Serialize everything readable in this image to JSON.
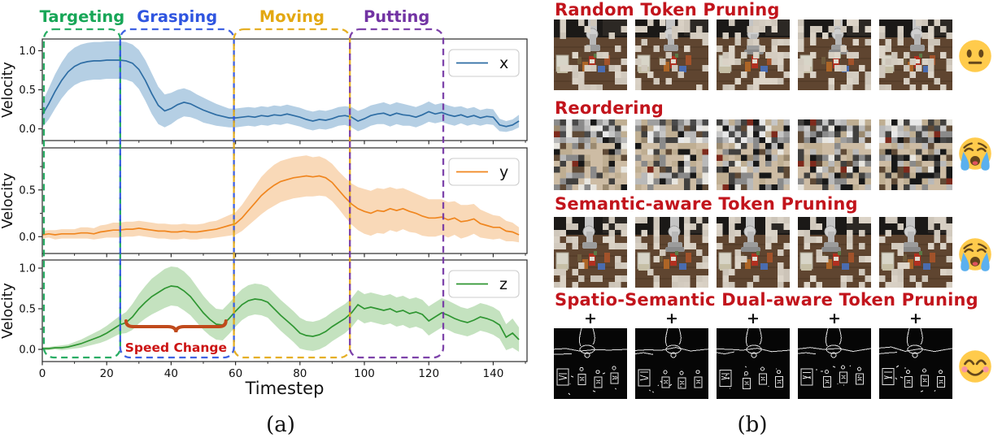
{
  "figure": {
    "caption_a": "(a)",
    "caption_b": "(b)"
  },
  "chart_data": {
    "type": "line",
    "xlabel": "Timestep",
    "ylabel": "Velocity",
    "xlim": [
      0,
      150.5
    ],
    "xticks": [
      0,
      20,
      40,
      60,
      80,
      100,
      120,
      140
    ],
    "x_start": 0,
    "x_step": 2,
    "grid": false,
    "legend_position": "upper right",
    "subplots": [
      {
        "name": "x",
        "legend": "x",
        "color": "#2e6da4",
        "fill": "#b5cfe4",
        "ylim": [
          -0.15,
          1.15
        ],
        "yticks": [
          0.0,
          0.5,
          1.0
        ],
        "mean": [
          0.18,
          0.32,
          0.48,
          0.62,
          0.73,
          0.8,
          0.84,
          0.86,
          0.87,
          0.87,
          0.88,
          0.88,
          0.88,
          0.87,
          0.84,
          0.76,
          0.62,
          0.45,
          0.3,
          0.23,
          0.26,
          0.31,
          0.34,
          0.32,
          0.28,
          0.24,
          0.21,
          0.18,
          0.16,
          0.14,
          0.14,
          0.15,
          0.16,
          0.15,
          0.17,
          0.16,
          0.18,
          0.17,
          0.19,
          0.17,
          0.15,
          0.12,
          0.1,
          0.12,
          0.11,
          0.13,
          0.16,
          0.17,
          0.15,
          0.1,
          0.13,
          0.17,
          0.19,
          0.2,
          0.17,
          0.2,
          0.18,
          0.17,
          0.15,
          0.18,
          0.22,
          0.19,
          0.21,
          0.18,
          0.16,
          0.18,
          0.15,
          0.17,
          0.14,
          0.16,
          0.15,
          0.05,
          0.03,
          0.05,
          0.1
        ],
        "band": [
          0.16,
          0.2,
          0.22,
          0.23,
          0.24,
          0.24,
          0.24,
          0.24,
          0.24,
          0.24,
          0.24,
          0.24,
          0.24,
          0.24,
          0.24,
          0.25,
          0.26,
          0.26,
          0.24,
          0.21,
          0.2,
          0.19,
          0.18,
          0.17,
          0.16,
          0.16,
          0.15,
          0.14,
          0.13,
          0.12,
          0.12,
          0.12,
          0.12,
          0.12,
          0.12,
          0.12,
          0.12,
          0.12,
          0.12,
          0.12,
          0.12,
          0.12,
          0.12,
          0.12,
          0.12,
          0.12,
          0.12,
          0.12,
          0.13,
          0.13,
          0.13,
          0.13,
          0.13,
          0.14,
          0.14,
          0.14,
          0.14,
          0.13,
          0.13,
          0.13,
          0.13,
          0.12,
          0.12,
          0.12,
          0.12,
          0.11,
          0.11,
          0.11,
          0.1,
          0.1,
          0.1,
          0.08,
          0.07,
          0.07,
          0.08
        ]
      },
      {
        "name": "y",
        "legend": "y",
        "color": "#f0861f",
        "fill": "#f9d9b8",
        "ylim": [
          -0.18,
          0.95
        ],
        "yticks": [
          0.0,
          0.5
        ],
        "mean": [
          0.02,
          0.03,
          0.02,
          0.03,
          0.03,
          0.03,
          0.04,
          0.04,
          0.03,
          0.05,
          0.06,
          0.07,
          0.07,
          0.08,
          0.08,
          0.09,
          0.08,
          0.07,
          0.06,
          0.06,
          0.05,
          0.05,
          0.06,
          0.05,
          0.05,
          0.06,
          0.07,
          0.08,
          0.1,
          0.12,
          0.14,
          0.2,
          0.28,
          0.36,
          0.44,
          0.5,
          0.55,
          0.59,
          0.61,
          0.63,
          0.64,
          0.65,
          0.64,
          0.65,
          0.63,
          0.58,
          0.5,
          0.42,
          0.35,
          0.3,
          0.27,
          0.25,
          0.28,
          0.27,
          0.3,
          0.28,
          0.3,
          0.27,
          0.25,
          0.22,
          0.2,
          0.2,
          0.21,
          0.18,
          0.2,
          0.16,
          0.17,
          0.19,
          0.14,
          0.12,
          0.1,
          0.1,
          0.06,
          0.05,
          0.02
        ],
        "band": [
          0.04,
          0.04,
          0.05,
          0.05,
          0.05,
          0.05,
          0.06,
          0.06,
          0.06,
          0.07,
          0.07,
          0.08,
          0.08,
          0.08,
          0.08,
          0.08,
          0.08,
          0.08,
          0.08,
          0.08,
          0.08,
          0.08,
          0.08,
          0.08,
          0.08,
          0.08,
          0.09,
          0.09,
          0.1,
          0.11,
          0.12,
          0.14,
          0.16,
          0.18,
          0.2,
          0.21,
          0.22,
          0.22,
          0.22,
          0.22,
          0.22,
          0.22,
          0.21,
          0.21,
          0.2,
          0.2,
          0.2,
          0.21,
          0.22,
          0.23,
          0.24,
          0.24,
          0.24,
          0.24,
          0.23,
          0.23,
          0.22,
          0.22,
          0.21,
          0.21,
          0.2,
          0.2,
          0.19,
          0.19,
          0.18,
          0.18,
          0.17,
          0.16,
          0.15,
          0.14,
          0.13,
          0.12,
          0.11,
          0.1,
          0.08
        ]
      },
      {
        "name": "z",
        "legend": "z",
        "color": "#2f9632",
        "fill": "#c4e2bf",
        "ylim": [
          -0.15,
          1.1
        ],
        "yticks": [
          0.0,
          0.5,
          1.0
        ],
        "mean": [
          0.01,
          0.01,
          0.02,
          0.02,
          0.03,
          0.05,
          0.07,
          0.1,
          0.13,
          0.16,
          0.2,
          0.25,
          0.3,
          0.33,
          0.4,
          0.5,
          0.58,
          0.65,
          0.7,
          0.75,
          0.78,
          0.77,
          0.72,
          0.65,
          0.55,
          0.45,
          0.37,
          0.31,
          0.3,
          0.38,
          0.47,
          0.55,
          0.6,
          0.62,
          0.61,
          0.58,
          0.5,
          0.42,
          0.35,
          0.28,
          0.2,
          0.17,
          0.16,
          0.18,
          0.22,
          0.28,
          0.33,
          0.38,
          0.45,
          0.55,
          0.5,
          0.52,
          0.5,
          0.48,
          0.5,
          0.46,
          0.48,
          0.44,
          0.46,
          0.43,
          0.35,
          0.4,
          0.45,
          0.42,
          0.38,
          0.35,
          0.33,
          0.36,
          0.4,
          0.38,
          0.35,
          0.3,
          0.15,
          0.2,
          0.12
        ],
        "band": [
          0.02,
          0.02,
          0.02,
          0.03,
          0.03,
          0.04,
          0.05,
          0.06,
          0.07,
          0.08,
          0.09,
          0.1,
          0.11,
          0.13,
          0.16,
          0.18,
          0.2,
          0.22,
          0.23,
          0.24,
          0.24,
          0.24,
          0.24,
          0.23,
          0.22,
          0.21,
          0.2,
          0.19,
          0.19,
          0.19,
          0.19,
          0.19,
          0.19,
          0.19,
          0.19,
          0.19,
          0.19,
          0.19,
          0.19,
          0.19,
          0.19,
          0.18,
          0.18,
          0.18,
          0.18,
          0.18,
          0.18,
          0.18,
          0.18,
          0.18,
          0.18,
          0.18,
          0.18,
          0.18,
          0.18,
          0.18,
          0.18,
          0.18,
          0.18,
          0.18,
          0.18,
          0.18,
          0.18,
          0.18,
          0.18,
          0.17,
          0.17,
          0.17,
          0.17,
          0.17,
          0.17,
          0.17,
          0.16,
          0.18,
          0.15
        ]
      }
    ],
    "phases": [
      {
        "label": "Targeting",
        "color": "#17a657",
        "x0": 0.5,
        "x1": 24.2
      },
      {
        "label": "Grasping",
        "color": "#2f55e0",
        "x0": 24.2,
        "x1": 59.5
      },
      {
        "label": "Moving",
        "color": "#e3a812",
        "x0": 59.5,
        "x1": 95.5
      },
      {
        "label": "Putting",
        "color": "#7233a3",
        "x0": 95.5,
        "x1": 124.5
      }
    ],
    "annotation": {
      "text": "Speed Change",
      "text_color": "#cc1414",
      "brace_color": "#c04a1c",
      "subplot": "z",
      "brace_x0": 26,
      "brace_x1": 57,
      "brace_y": 0.28,
      "text_x": 41.5,
      "text_y": 0.02
    }
  },
  "panel_b": {
    "heading_color": "#c2141c",
    "rows": [
      {
        "title": "Random Token Pruning",
        "style": "random-pruning",
        "emoji": "neutral",
        "emoji_name": "neutral-face-emoji",
        "image_count": 5
      },
      {
        "title": "Reordering",
        "style": "shuffled-patches",
        "emoji": "crying",
        "emoji_name": "loudly-crying-face-emoji",
        "image_count": 5
      },
      {
        "title": "Semantic-aware Token Pruning",
        "style": "semantic-pruning",
        "emoji": "crying",
        "emoji_name": "loudly-crying-face-emoji",
        "image_count": 5
      },
      {
        "title": "Spatio-Semantic Dual-aware Token Pruning",
        "style": "edge-map",
        "emoji": "happy",
        "emoji_name": "smiling-face-emoji",
        "image_count": 5,
        "plus_label": "+"
      }
    ],
    "emoji_colors": {
      "face": "#ffcb4c",
      "features": "#65471b",
      "tears": "#5bb0ee",
      "blush": "#f78fa7"
    }
  }
}
